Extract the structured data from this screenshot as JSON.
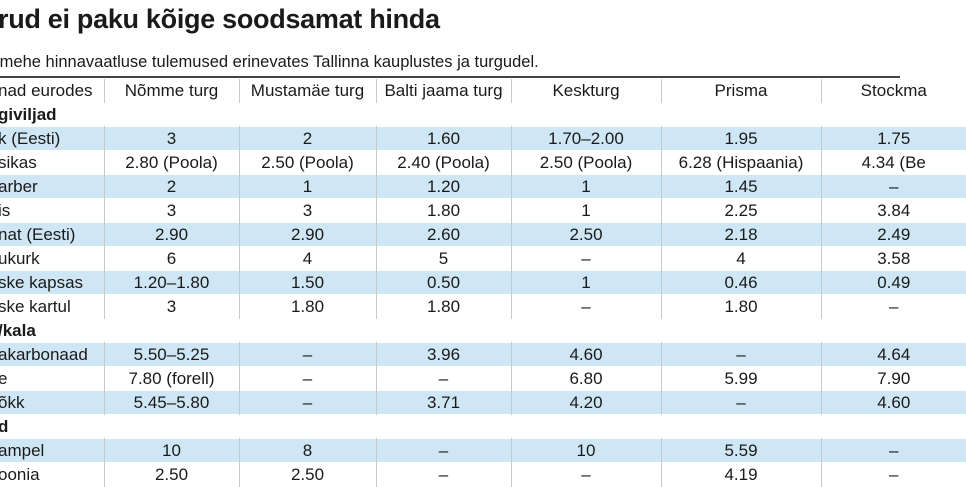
{
  "title": "rud ei paku kõige soodsamat hinda",
  "subtitle": "imehe hinnavaatluse tulemused erinevates Tallinna kauplustes ja turgudel.",
  "header": [
    "nad eurodes",
    "Nõmme turg",
    "Mustamäe turg",
    "Balti jaama turg",
    "Keskturg",
    "Prisma",
    "Stockma"
  ],
  "rows": [
    {
      "type": "section",
      "label": "giviljad"
    },
    {
      "type": "data",
      "shaded": true,
      "cells": [
        "k (Eesti)",
        "3",
        "2",
        "1.60",
        "1.70–2.00",
        "1.95",
        "1.75"
      ]
    },
    {
      "type": "data",
      "shaded": false,
      "cells": [
        "sikas",
        "2.80 (Poola)",
        "2.50 (Poola)",
        "2.40 (Poola)",
        "2.50 (Poola)",
        "6.28 (Hispaania)",
        "4.34 (Be"
      ]
    },
    {
      "type": "data",
      "shaded": true,
      "cells": [
        "arber",
        "2",
        "1",
        "1.20",
        "1",
        "1.45",
        "–"
      ]
    },
    {
      "type": "data",
      "shaded": false,
      "cells": [
        "is",
        "3",
        "3",
        "1.80",
        "1",
        "2.25",
        "3.84"
      ]
    },
    {
      "type": "data",
      "shaded": true,
      "cells": [
        "nat (Eesti)",
        "2.90",
        "2.90",
        "2.60",
        "2.50",
        "2.18",
        "2.49"
      ]
    },
    {
      "type": "data",
      "shaded": false,
      "cells": [
        "ukurk",
        "6",
        "4",
        "5",
        "–",
        "4",
        "3.58"
      ]
    },
    {
      "type": "data",
      "shaded": true,
      "cells": [
        "ske kapsas",
        "1.20–1.80",
        "1.50",
        "0.50",
        "1",
        "0.46",
        "0.49"
      ]
    },
    {
      "type": "data",
      "shaded": false,
      "cells": [
        "ske kartul",
        "3",
        "1.80",
        "1.80",
        "–",
        "1.80",
        "–"
      ]
    },
    {
      "type": "section",
      "label": "/kala"
    },
    {
      "type": "data",
      "shaded": true,
      "cells": [
        "akarbonaad",
        "5.50–5.25",
        "–",
        "3.96",
        "4.60",
        "–",
        "4.64"
      ]
    },
    {
      "type": "data",
      "shaded": false,
      "cells": [
        "e",
        "7.80 (forell)",
        "–",
        "–",
        "6.80",
        "5.99",
        "7.90"
      ]
    },
    {
      "type": "data",
      "shaded": true,
      "cells": [
        "õkk",
        "5.45–5.80",
        "–",
        "3.71",
        "4.20",
        "–",
        "4.60"
      ]
    },
    {
      "type": "section",
      "label": "d"
    },
    {
      "type": "data",
      "shaded": true,
      "cells": [
        "ampel",
        "10",
        "8",
        "–",
        "10",
        "5.59",
        "–"
      ]
    },
    {
      "type": "data",
      "shaded": false,
      "cells": [
        "oonia",
        "2.50",
        "2.50",
        "–",
        "–",
        "4.19",
        "–"
      ]
    }
  ],
  "colors": {
    "shade": "#cfe7f5",
    "rule": "#444444",
    "text": "#1a1a1a"
  }
}
